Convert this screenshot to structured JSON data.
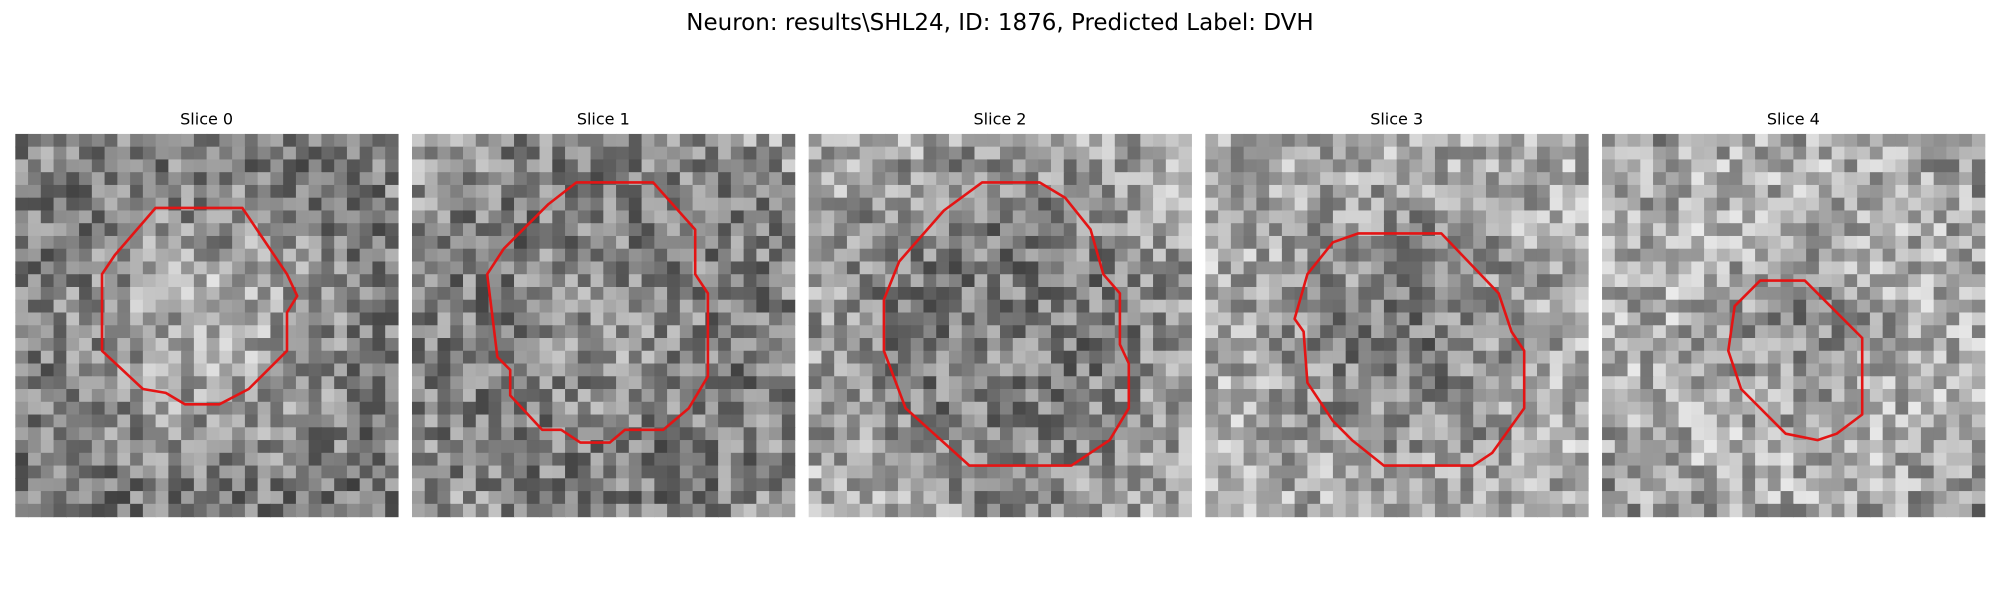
{
  "header": {
    "title": "Neuron: results\\SHL24, ID: 1876, Predicted Label: DVH"
  },
  "panels": [
    {
      "title": "Slice 0"
    },
    {
      "title": "Slice 1"
    },
    {
      "title": "Slice 2"
    },
    {
      "title": "Slice 3"
    },
    {
      "title": "Slice 4"
    }
  ]
}
